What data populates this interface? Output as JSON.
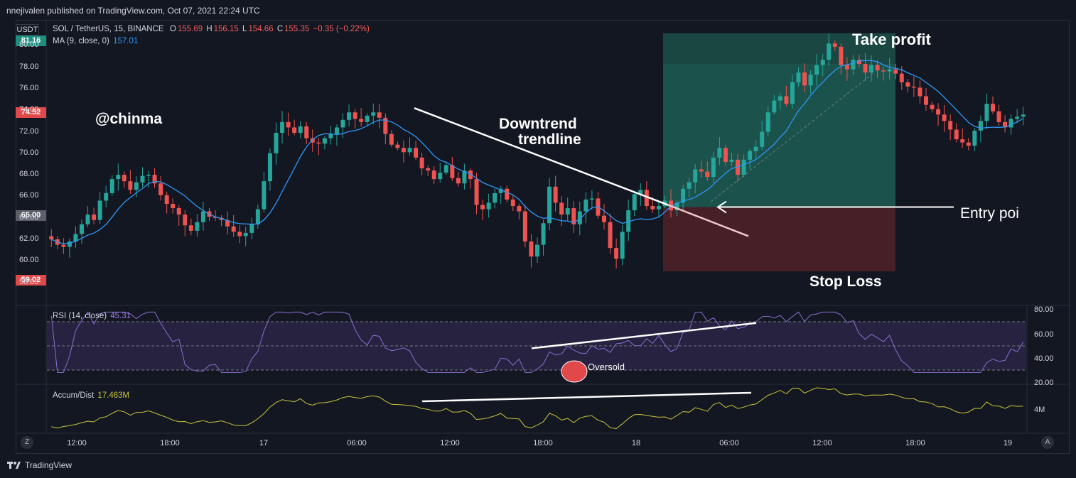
{
  "header": {
    "published": "nnejivalen published on TradingView.com, Oct 07, 2021 22:24 UTC"
  },
  "main_legend": {
    "currency_button": "USDT",
    "symbol": "SOL / TetherUS, 15, BINANCE",
    "o_label": "O",
    "o_value": "155.69",
    "h_label": "H",
    "h_value": "156.15",
    "l_label": "L",
    "l_value": "154.66",
    "c_label": "C",
    "c_value": "155.35",
    "change": "−0.35 (−0.22%)",
    "ma_label": "MA (9, close, 0)",
    "ma_value": "157.01"
  },
  "price_tags": {
    "tp": "81.16",
    "high_marker": "74.52",
    "entry": "65.00",
    "sl": "59.02"
  },
  "price_axis_ticks": [
    "80.00",
    "78.00",
    "76.00",
    "74.00",
    "72.00",
    "70.00",
    "68.00",
    "66.00",
    "64.00",
    "62.00",
    "60.00",
    "58.00"
  ],
  "rsi": {
    "label": "RSI (14, close)",
    "value": "45.31",
    "axis_ticks": [
      "80.00",
      "60.00",
      "40.00",
      "20.00"
    ]
  },
  "accum": {
    "label": "Accum/Dist",
    "value": "17.463M",
    "axis_tick": "4M"
  },
  "time_axis": [
    "12:00",
    "18:00",
    "17",
    "06:00",
    "12:00",
    "18:00",
    "18",
    "06:00",
    "12:00",
    "18:00",
    "19"
  ],
  "annotations": {
    "watermark": "@chinma",
    "downtrend_line1": "Downtrend",
    "downtrend_line2": "trendline",
    "take_profit": "Take profit",
    "entry_point": "Entry poi",
    "stop_loss": "Stop Loss",
    "oversold": "Oversold"
  },
  "footer": {
    "brand": "TradingView",
    "left_corner": "Z",
    "right_corner": "A"
  },
  "colors": {
    "background": "#131722",
    "up_candle": "#26a69a",
    "down_candle": "#ef5350",
    "ma_line": "#2e96f5",
    "rsi_line": "#8a6fd1",
    "accum_line": "#c8c43a",
    "profit_zone": "#1a4a44",
    "loss_zone": "#4a2128"
  },
  "chart_data": [
    {
      "type": "candlestick",
      "title": "SOL / TetherUS, 15, BINANCE",
      "ylim": [
        57,
        82
      ],
      "ma_period": 9,
      "close_series_approx": [
        62.0,
        61.5,
        61.3,
        61.8,
        62.5,
        63.4,
        64.3,
        63.8,
        65.6,
        66.3,
        67.6,
        68.0,
        67.4,
        66.6,
        67.3,
        67.9,
        68.0,
        67.2,
        66.1,
        65.3,
        64.9,
        64.3,
        63.3,
        62.8,
        63.6,
        64.6,
        64.1,
        64.0,
        63.8,
        63.2,
        62.7,
        62.3,
        62.6,
        63.4,
        64.8,
        67.4,
        70.0,
        71.9,
        72.9,
        72.4,
        71.9,
        72.5,
        71.4,
        71.0,
        70.9,
        71.4,
        71.8,
        72.4,
        73.1,
        73.8,
        73.2,
        72.9,
        73.5,
        73.8,
        73.3,
        71.8,
        70.8,
        70.5,
        70.1,
        70.5,
        69.6,
        68.6,
        68.4,
        67.6,
        68.2,
        68.9,
        67.7,
        67.2,
        68.4,
        67.6,
        65.2,
        64.8,
        65.4,
        66.3,
        66.7,
        65.7,
        65.1,
        64.6,
        61.8,
        60.4,
        61.5,
        63.5,
        66.9,
        65.4,
        64.3,
        64.9,
        63.4,
        64.6,
        65.7,
        65.8,
        64.2,
        63.6,
        61.2,
        60.2,
        62.7,
        64.7,
        66.2,
        66.6,
        65.1,
        64.8,
        65.1,
        65.6,
        64.7,
        65.4,
        66.7,
        67.3,
        68.5,
        68.3,
        67.8,
        69.6,
        70.5,
        69.2,
        69.4,
        68.0,
        69.4,
        70.2,
        70.6,
        72.0,
        73.8,
        74.9,
        75.3,
        74.6,
        76.6,
        77.5,
        76.3,
        77.3,
        78.2,
        78.7,
        80.2,
        79.9,
        78.2,
        77.8,
        78.7,
        78.3,
        77.5,
        78.2,
        77.7,
        77.6,
        77.8,
        77.4,
        76.6,
        76.2,
        76.1,
        75.3,
        74.5,
        74.1,
        73.6,
        73.0,
        72.2,
        71.3,
        71.0,
        70.7,
        72.1,
        73.0,
        74.6,
        73.9,
        72.9,
        72.4,
        73.2,
        73.4,
        73.6
      ],
      "ma_series": "MA (9, close, 0)",
      "position_tool": {
        "take_profit": 81.16,
        "entry": 65.0,
        "stop_loss": 59.02
      },
      "trendline": {
        "label": "Downtrend trendline",
        "from": 74.2,
        "to": 62.3
      }
    },
    {
      "type": "line",
      "title": "RSI (14, close)",
      "ylim": [
        20,
        80
      ],
      "bands": [
        70,
        50,
        30
      ],
      "divergence_trendline": {
        "from": 48,
        "to": 69
      }
    },
    {
      "type": "line",
      "title": "Accum/Dist",
      "last_value": "17.463M"
    }
  ]
}
